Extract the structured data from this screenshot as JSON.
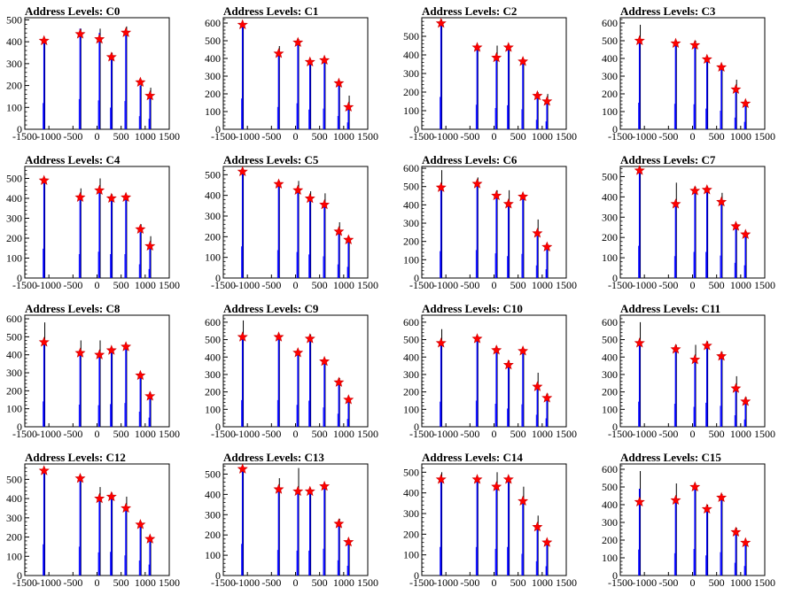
{
  "chart_data": [
    {
      "type": "bar",
      "title": "Address Levels: C0",
      "xlim": [
        -1500,
        1500
      ],
      "ylim": [
        0,
        510
      ],
      "yticks": [
        0,
        100,
        200,
        300,
        400,
        500
      ],
      "xticks": [
        -1500,
        -1000,
        -500,
        0,
        500,
        1000,
        1500
      ],
      "xtick_labels": [
        "-1500",
        "-1000",
        "-500",
        "0",
        "500",
        "1000",
        "1500"
      ],
      "peaks": [
        -1100,
        -350,
        50,
        300,
        600,
        900,
        1100
      ],
      "black_values": [
        400,
        460,
        460,
        350,
        470,
        220,
        190
      ],
      "blue_values": [
        400,
        460,
        440,
        330,
        430,
        200,
        160
      ],
      "marker_values": [
        405,
        435,
        412,
        330,
        442,
        215,
        153
      ]
    },
    {
      "type": "bar",
      "title": "Address Levels: C1",
      "xlim": [
        -1500,
        1500
      ],
      "ylim": [
        0,
        630
      ],
      "yticks": [
        0,
        100,
        200,
        300,
        400,
        500,
        600
      ],
      "xticks": [
        -1500,
        -1000,
        -500,
        0,
        500,
        1000,
        1500
      ],
      "xtick_labels": [
        "-1500",
        "-1000",
        "-500",
        "0",
        "500",
        "1000",
        "1500"
      ],
      "peaks": [
        -1100,
        -350,
        50,
        300,
        600,
        900,
        1100
      ],
      "black_values": [
        600,
        470,
        510,
        390,
        400,
        270,
        190
      ],
      "blue_values": [
        580,
        420,
        490,
        370,
        390,
        250,
        130
      ],
      "marker_values": [
        590,
        428,
        490,
        380,
        390,
        260,
        125
      ]
    },
    {
      "type": "bar",
      "title": "Address Levels: C2",
      "xlim": [
        -1500,
        1500
      ],
      "ylim": [
        0,
        600
      ],
      "yticks": [
        0,
        100,
        200,
        300,
        400,
        500
      ],
      "xticks": [
        -1500,
        -1000,
        -500,
        0,
        500,
        1000,
        1500
      ],
      "xtick_labels": [
        "-1500",
        "-1000",
        "-500",
        "0",
        "500",
        "1000",
        "1500"
      ],
      "peaks": [
        -1100,
        -350,
        50,
        300,
        600,
        900,
        1100
      ],
      "black_values": [
        590,
        450,
        450,
        450,
        370,
        200,
        190
      ],
      "blue_values": [
        580,
        440,
        380,
        430,
        360,
        170,
        140
      ],
      "marker_values": [
        570,
        440,
        385,
        440,
        365,
        180,
        150
      ]
    },
    {
      "type": "bar",
      "title": "Address Levels: C3",
      "xlim": [
        -1500,
        1500
      ],
      "ylim": [
        0,
        630
      ],
      "yticks": [
        0,
        100,
        200,
        300,
        400,
        500,
        600
      ],
      "xticks": [
        -1500,
        -1000,
        -500,
        0,
        500,
        1000,
        1500
      ],
      "xtick_labels": [
        "-1500",
        "-1000",
        "-500",
        "0",
        "500",
        "1000",
        "1500"
      ],
      "peaks": [
        -1100,
        -350,
        50,
        300,
        600,
        900,
        1100
      ],
      "black_values": [
        590,
        500,
        500,
        410,
        360,
        280,
        160
      ],
      "blue_values": [
        500,
        480,
        470,
        390,
        350,
        220,
        140
      ],
      "marker_values": [
        500,
        485,
        475,
        395,
        350,
        225,
        145
      ]
    },
    {
      "type": "bar",
      "title": "Address Levels: C4",
      "xlim": [
        -1500,
        1500
      ],
      "ylim": [
        0,
        560
      ],
      "yticks": [
        0,
        100,
        200,
        300,
        400,
        500
      ],
      "xticks": [
        -1500,
        -1000,
        -500,
        0,
        500,
        1000,
        1500
      ],
      "xtick_labels": [
        "-1500",
        "-1000",
        "-500",
        "0",
        "500",
        "1000",
        "1500"
      ],
      "peaks": [
        -1100,
        -350,
        50,
        300,
        600,
        900,
        1100
      ],
      "black_values": [
        480,
        450,
        500,
        420,
        410,
        270,
        210
      ],
      "blue_values": [
        490,
        400,
        440,
        400,
        400,
        230,
        150
      ],
      "marker_values": [
        490,
        405,
        440,
        400,
        405,
        245,
        160
      ]
    },
    {
      "type": "bar",
      "title": "Address Levels: C5",
      "xlim": [
        -1500,
        1500
      ],
      "ylim": [
        0,
        540
      ],
      "yticks": [
        0,
        100,
        200,
        300,
        400,
        500
      ],
      "xticks": [
        -1500,
        -1000,
        -500,
        0,
        500,
        1000,
        1500
      ],
      "xtick_labels": [
        "-1500",
        "-1000",
        "-500",
        "0",
        "500",
        "1000",
        "1500"
      ],
      "peaks": [
        -1100,
        -350,
        50,
        300,
        600,
        900,
        1100
      ],
      "black_values": [
        530,
        470,
        470,
        420,
        410,
        270,
        200
      ],
      "blue_values": [
        510,
        450,
        420,
        380,
        350,
        220,
        180
      ],
      "marker_values": [
        515,
        455,
        425,
        385,
        355,
        225,
        185
      ]
    },
    {
      "type": "bar",
      "title": "Address Levels: C6",
      "xlim": [
        -1500,
        1500
      ],
      "ylim": [
        0,
        610
      ],
      "yticks": [
        0,
        100,
        200,
        300,
        400,
        500,
        600
      ],
      "xticks": [
        -1500,
        -1000,
        -500,
        0,
        500,
        1000,
        1500
      ],
      "xtick_labels": [
        "-1500",
        "-1000",
        "-500",
        "0",
        "500",
        "1000",
        "1500"
      ],
      "peaks": [
        -1100,
        -350,
        50,
        300,
        600,
        900,
        1100
      ],
      "black_values": [
        590,
        550,
        480,
        480,
        460,
        320,
        180
      ],
      "blue_values": [
        490,
        510,
        450,
        400,
        440,
        230,
        160
      ],
      "marker_values": [
        495,
        515,
        450,
        405,
        445,
        245,
        170
      ]
    },
    {
      "type": "bar",
      "title": "Address Levels: C7",
      "xlim": [
        -1500,
        1500
      ],
      "ylim": [
        0,
        550
      ],
      "yticks": [
        0,
        100,
        200,
        300,
        400,
        500
      ],
      "xticks": [
        -1500,
        -1000,
        -500,
        0,
        500,
        1000,
        1500
      ],
      "xtick_labels": [
        "-1500",
        "-1000",
        "-500",
        "0",
        "500",
        "1000",
        "1500"
      ],
      "peaks": [
        -1100,
        -350,
        50,
        300,
        600,
        900,
        1100
      ],
      "black_values": [
        550,
        470,
        450,
        450,
        420,
        270,
        230
      ],
      "blue_values": [
        530,
        360,
        430,
        430,
        370,
        250,
        210
      ],
      "marker_values": [
        530,
        365,
        430,
        435,
        375,
        255,
        215
      ]
    },
    {
      "type": "bar",
      "title": "Address Levels: C8",
      "xlim": [
        -1500,
        1500
      ],
      "ylim": [
        0,
        620
      ],
      "yticks": [
        0,
        100,
        200,
        300,
        400,
        500,
        600
      ],
      "xticks": [
        -1500,
        -1000,
        -500,
        0,
        500,
        1000,
        1500
      ],
      "xtick_labels": [
        "-1500",
        "-1000",
        "-500",
        "0",
        "500",
        "1000",
        "1500"
      ],
      "peaks": [
        -1100,
        -350,
        50,
        300,
        600,
        900,
        1100
      ],
      "black_values": [
        580,
        480,
        480,
        440,
        460,
        300,
        190
      ],
      "blue_values": [
        470,
        410,
        400,
        420,
        440,
        280,
        170
      ],
      "marker_values": [
        470,
        410,
        400,
        425,
        445,
        285,
        170
      ]
    },
    {
      "type": "bar",
      "title": "Address Levels: C9",
      "xlim": [
        -1500,
        1500
      ],
      "ylim": [
        0,
        640
      ],
      "yticks": [
        0,
        100,
        200,
        300,
        400,
        500,
        600
      ],
      "xticks": [
        -1500,
        -1000,
        -500,
        0,
        500,
        1000,
        1500
      ],
      "xtick_labels": [
        "-1500",
        "-1000",
        "-500",
        "0",
        "500",
        "1000",
        "1500"
      ],
      "peaks": [
        -1100,
        -350,
        50,
        300,
        600,
        900,
        1100
      ],
      "black_values": [
        610,
        530,
        440,
        530,
        390,
        280,
        170
      ],
      "blue_values": [
        510,
        510,
        420,
        500,
        370,
        250,
        150
      ],
      "marker_values": [
        515,
        515,
        425,
        505,
        375,
        255,
        155
      ]
    },
    {
      "type": "bar",
      "title": "Address Levels: C10",
      "xlim": [
        -1500,
        1500
      ],
      "ylim": [
        0,
        640
      ],
      "yticks": [
        0,
        100,
        200,
        300,
        400,
        500,
        600
      ],
      "xticks": [
        -1500,
        -1000,
        -500,
        0,
        500,
        1000,
        1500
      ],
      "xtick_labels": [
        "-1500",
        "-1000",
        "-500",
        "0",
        "500",
        "1000",
        "1500"
      ],
      "peaks": [
        -1100,
        -350,
        50,
        300,
        600,
        900,
        1100
      ],
      "black_values": [
        560,
        520,
        460,
        380,
        450,
        310,
        190
      ],
      "blue_values": [
        480,
        500,
        440,
        350,
        430,
        230,
        160
      ],
      "marker_values": [
        480,
        505,
        440,
        355,
        435,
        230,
        165
      ]
    },
    {
      "type": "bar",
      "title": "Address Levels: C11",
      "xlim": [
        -1500,
        1500
      ],
      "ylim": [
        0,
        640
      ],
      "yticks": [
        0,
        100,
        200,
        300,
        400,
        500,
        600
      ],
      "xticks": [
        -1500,
        -1000,
        -500,
        0,
        500,
        1000,
        1500
      ],
      "xtick_labels": [
        "-1500",
        "-1000",
        "-500",
        "0",
        "500",
        "1000",
        "1500"
      ],
      "peaks": [
        -1100,
        -350,
        50,
        300,
        600,
        900,
        1100
      ],
      "black_values": [
        600,
        470,
        470,
        490,
        430,
        290,
        170
      ],
      "blue_values": [
        480,
        440,
        380,
        460,
        400,
        220,
        140
      ],
      "marker_values": [
        480,
        445,
        385,
        465,
        405,
        220,
        145
      ]
    },
    {
      "type": "bar",
      "title": "Address Levels: C12",
      "xlim": [
        -1500,
        1500
      ],
      "ylim": [
        0,
        580
      ],
      "yticks": [
        0,
        100,
        200,
        300,
        400,
        500
      ],
      "xticks": [
        -1500,
        -1000,
        -500,
        0,
        500,
        1000,
        1500
      ],
      "xtick_labels": [
        "-1500",
        "-1000",
        "-500",
        "0",
        "500",
        "1000",
        "1500"
      ],
      "peaks": [
        -1100,
        -350,
        50,
        300,
        600,
        900,
        1100
      ],
      "black_values": [
        560,
        520,
        460,
        430,
        410,
        280,
        200
      ],
      "blue_values": [
        540,
        500,
        400,
        410,
        350,
        260,
        190
      ],
      "marker_values": [
        545,
        505,
        400,
        410,
        350,
        265,
        190
      ]
    },
    {
      "type": "bar",
      "title": "Address Levels: C13",
      "xlim": [
        -1500,
        1500
      ],
      "ylim": [
        0,
        550
      ],
      "yticks": [
        0,
        100,
        200,
        300,
        400,
        500
      ],
      "xticks": [
        -1500,
        -1000,
        -500,
        0,
        500,
        1000,
        1500
      ],
      "xtick_labels": [
        "-1500",
        "-1000",
        "-500",
        "0",
        "500",
        "1000",
        "1500"
      ],
      "peaks": [
        -1100,
        -350,
        50,
        300,
        600,
        900,
        1100
      ],
      "black_values": [
        540,
        480,
        530,
        420,
        450,
        280,
        180
      ],
      "blue_values": [
        520,
        420,
        410,
        410,
        440,
        250,
        160
      ],
      "marker_values": [
        525,
        425,
        415,
        415,
        440,
        255,
        165
      ]
    },
    {
      "type": "bar",
      "title": "Address Levels: C14",
      "xlim": [
        -1500,
        1500
      ],
      "ylim": [
        0,
        540
      ],
      "yticks": [
        0,
        100,
        200,
        300,
        400,
        500
      ],
      "xticks": [
        -1500,
        -1000,
        -500,
        0,
        500,
        1000,
        1500
      ],
      "xtick_labels": [
        "-1500",
        "-1000",
        "-500",
        "0",
        "500",
        "1000",
        "1500"
      ],
      "peaks": [
        -1100,
        -350,
        50,
        300,
        600,
        900,
        1100
      ],
      "black_values": [
        500,
        470,
        500,
        480,
        430,
        290,
        170
      ],
      "blue_values": [
        460,
        460,
        430,
        460,
        350,
        230,
        150
      ],
      "marker_values": [
        465,
        465,
        430,
        465,
        360,
        235,
        160
      ]
    },
    {
      "type": "bar",
      "title": "Address Levels: C15",
      "xlim": [
        -1500,
        1500
      ],
      "ylim": [
        0,
        630
      ],
      "yticks": [
        0,
        100,
        200,
        300,
        400,
        500,
        600
      ],
      "xticks": [
        -1500,
        -1000,
        -500,
        0,
        500,
        1000,
        1500
      ],
      "xtick_labels": [
        "-1500",
        "-1000",
        "-500",
        "0",
        "500",
        "1000",
        "1500"
      ],
      "peaks": [
        -1100,
        -350,
        50,
        300,
        600,
        900,
        1100
      ],
      "black_values": [
        590,
        520,
        520,
        400,
        460,
        270,
        190
      ],
      "blue_values": [
        490,
        420,
        500,
        380,
        440,
        240,
        180
      ],
      "marker_values": [
        415,
        425,
        500,
        375,
        440,
        245,
        185
      ]
    }
  ]
}
